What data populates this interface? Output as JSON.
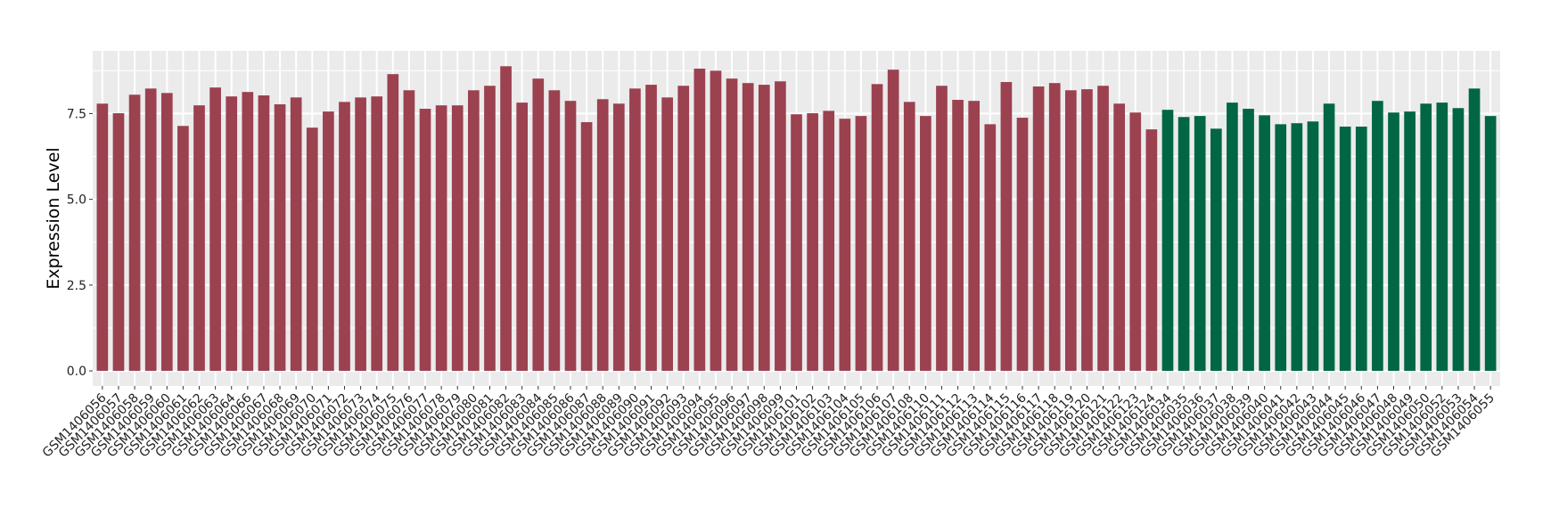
{
  "chart_data": {
    "type": "bar",
    "title": "",
    "xlabel": "",
    "ylabel": "Expression Level",
    "ylim": [
      -0.44,
      9.33
    ],
    "yticks": [
      0.0,
      2.5,
      5.0,
      7.5
    ],
    "ytick_labels": [
      "0.0",
      "2.5",
      "5.0",
      "7.5"
    ],
    "grid": true,
    "legend": "none",
    "colors": {
      "group1": "#9b4150",
      "group2": "#006644",
      "panel": "#ebebeb",
      "grid": "#ffffff"
    },
    "categories": [
      "GSM1406056",
      "GSM1406057",
      "GSM1406058",
      "GSM1406059",
      "GSM1406060",
      "GSM1406061",
      "GSM1406062",
      "GSM1406063",
      "GSM1406064",
      "GSM1406066",
      "GSM1406067",
      "GSM1406068",
      "GSM1406069",
      "GSM1406070",
      "GSM1406071",
      "GSM1406072",
      "GSM1406073",
      "GSM1406074",
      "GSM1406075",
      "GSM1406076",
      "GSM1406077",
      "GSM1406078",
      "GSM1406079",
      "GSM1406080",
      "GSM1406081",
      "GSM1406082",
      "GSM1406083",
      "GSM1406084",
      "GSM1406085",
      "GSM1406086",
      "GSM1406087",
      "GSM1406088",
      "GSM1406089",
      "GSM1406090",
      "GSM1406091",
      "GSM1406092",
      "GSM1406093",
      "GSM1406094",
      "GSM1406095",
      "GSM1406096",
      "GSM1406097",
      "GSM1406098",
      "GSM1406099",
      "GSM1406101",
      "GSM1406102",
      "GSM1406103",
      "GSM1406104",
      "GSM1406105",
      "GSM1406106",
      "GSM1406107",
      "GSM1406108",
      "GSM1406110",
      "GSM1406111",
      "GSM1406112",
      "GSM1406113",
      "GSM1406114",
      "GSM1406115",
      "GSM1406116",
      "GSM1406117",
      "GSM1406118",
      "GSM1406119",
      "GSM1406120",
      "GSM1406121",
      "GSM1406122",
      "GSM1406123",
      "GSM1406124",
      "GSM1406034",
      "GSM1406035",
      "GSM1406036",
      "GSM1406037",
      "GSM1406038",
      "GSM1406039",
      "GSM1406040",
      "GSM1406041",
      "GSM1406042",
      "GSM1406043",
      "GSM1406044",
      "GSM1406045",
      "GSM1406046",
      "GSM1406047",
      "GSM1406048",
      "GSM1406049",
      "GSM1406050",
      "GSM1406052",
      "GSM1406053",
      "GSM1406054",
      "GSM1406055"
    ],
    "values": [
      7.79,
      7.51,
      8.05,
      8.23,
      8.1,
      7.14,
      7.74,
      8.26,
      8.0,
      8.13,
      8.03,
      7.77,
      7.97,
      7.09,
      7.56,
      7.84,
      7.97,
      8.0,
      8.65,
      8.18,
      7.64,
      7.74,
      7.74,
      8.18,
      8.31,
      8.88,
      7.82,
      8.52,
      8.18,
      7.87,
      7.25,
      7.92,
      7.79,
      8.23,
      8.34,
      7.97,
      8.31,
      8.81,
      8.75,
      8.52,
      8.39,
      8.34,
      8.44,
      7.48,
      7.51,
      7.58,
      7.35,
      7.43,
      8.36,
      8.78,
      7.84,
      7.43,
      8.31,
      7.9,
      7.87,
      7.19,
      8.42,
      7.38,
      8.29,
      8.39,
      8.18,
      8.21,
      8.31,
      7.79,
      7.53,
      7.04,
      7.61,
      7.4,
      7.43,
      7.06,
      7.82,
      7.64,
      7.45,
      7.19,
      7.22,
      7.27,
      7.79,
      7.12,
      7.12,
      7.87,
      7.53,
      7.56,
      7.79,
      7.82,
      7.66,
      8.23,
      7.43
    ],
    "groups": [
      "group1",
      "group1",
      "group1",
      "group1",
      "group1",
      "group1",
      "group1",
      "group1",
      "group1",
      "group1",
      "group1",
      "group1",
      "group1",
      "group1",
      "group1",
      "group1",
      "group1",
      "group1",
      "group1",
      "group1",
      "group1",
      "group1",
      "group1",
      "group1",
      "group1",
      "group1",
      "group1",
      "group1",
      "group1",
      "group1",
      "group1",
      "group1",
      "group1",
      "group1",
      "group1",
      "group1",
      "group1",
      "group1",
      "group1",
      "group1",
      "group1",
      "group1",
      "group1",
      "group1",
      "group1",
      "group1",
      "group1",
      "group1",
      "group1",
      "group1",
      "group1",
      "group1",
      "group1",
      "group1",
      "group1",
      "group1",
      "group1",
      "group1",
      "group1",
      "group1",
      "group1",
      "group1",
      "group1",
      "group1",
      "group1",
      "group1",
      "group2",
      "group2",
      "group2",
      "group2",
      "group2",
      "group2",
      "group2",
      "group2",
      "group2",
      "group2",
      "group2",
      "group2",
      "group2",
      "group2",
      "group2",
      "group2",
      "group2",
      "group2",
      "group2",
      "group2",
      "group2"
    ]
  }
}
